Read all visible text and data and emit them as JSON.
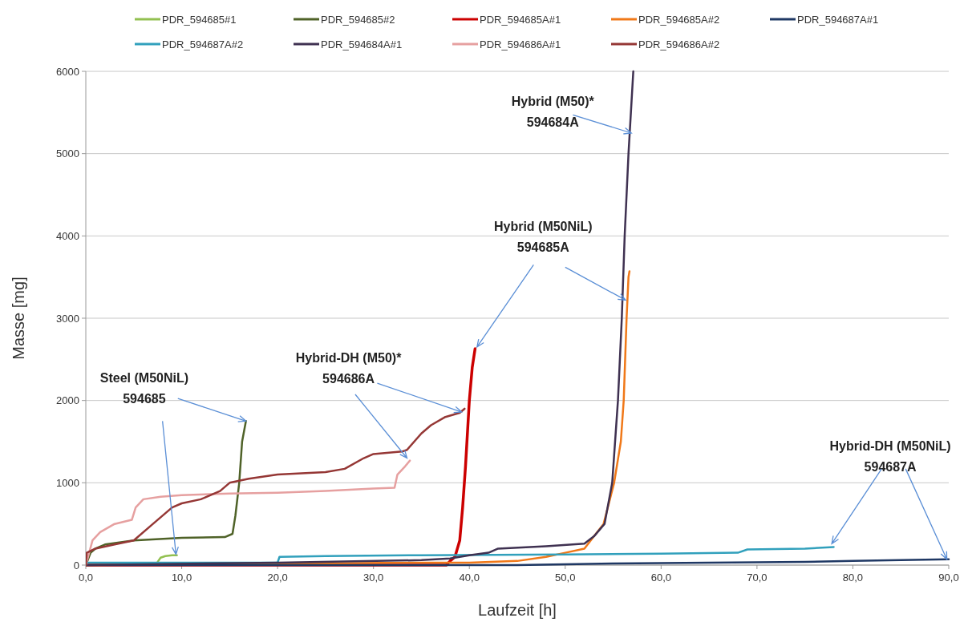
{
  "chart_data": {
    "type": "line",
    "xlabel": "Laufzeit  [h]",
    "ylabel": "Masse [mg]",
    "xlim": [
      0,
      90
    ],
    "ylim": [
      0,
      6000
    ],
    "xticks": [
      {
        "value": 0,
        "label": "0,0"
      },
      {
        "value": 10,
        "label": "10,0"
      },
      {
        "value": 20,
        "label": "20,0"
      },
      {
        "value": 30,
        "label": "30,0"
      },
      {
        "value": 40,
        "label": "40,0"
      },
      {
        "value": 50,
        "label": "50,0"
      },
      {
        "value": 60,
        "label": "60,0"
      },
      {
        "value": 70,
        "label": "70,0"
      },
      {
        "value": 80,
        "label": "80,0"
      },
      {
        "value": 90,
        "label": "90,0"
      }
    ],
    "yticks": [
      0,
      1000,
      2000,
      3000,
      4000,
      5000,
      6000
    ],
    "grid": "y",
    "legend": "top",
    "marker": "none",
    "line_style": "solid",
    "series": [
      {
        "name": "PDR_594685#1",
        "color": "#92c050",
        "x": [
          7.5,
          7.8,
          8.3,
          9,
          9.5
        ],
        "values": [
          40,
          90,
          110,
          120,
          120
        ]
      },
      {
        "name": "PDR_594685#2",
        "color": "#4f6228",
        "x": [
          0,
          0.5,
          1,
          2,
          5,
          10,
          14.5,
          15.3,
          15.6,
          16,
          16.3,
          16.7
        ],
        "values": [
          0,
          150,
          200,
          250,
          300,
          330,
          340,
          380,
          600,
          1000,
          1500,
          1750
        ]
      },
      {
        "name": "PDR_594685A#1",
        "color": "#cc0000",
        "x": [
          0,
          37.6,
          38,
          38.5,
          39,
          39.3,
          39.6,
          40,
          40.3,
          40.6
        ],
        "values": [
          0,
          0,
          50,
          100,
          300,
          700,
          1200,
          2000,
          2400,
          2630
        ]
      },
      {
        "name": "PDR_594685A#2",
        "color": "#f07818",
        "x": [
          0,
          35,
          40,
          45,
          48,
          50,
          52,
          53,
          54,
          55.1,
          55.8,
          56.1,
          56.4,
          56.6,
          56.7
        ],
        "values": [
          0,
          30,
          30,
          50,
          100,
          150,
          200,
          350,
          500,
          1000,
          1500,
          2000,
          3000,
          3500,
          3570
        ]
      },
      {
        "name": "PDR_594687A#1",
        "color": "#1f3864",
        "x": [
          0,
          45,
          50,
          55,
          65,
          75,
          80,
          85,
          90
        ],
        "values": [
          0,
          0,
          10,
          20,
          30,
          40,
          50,
          60,
          70
        ]
      },
      {
        "name": "PDR_594687A#2",
        "color": "#31a0bc",
        "x": [
          0,
          20,
          20.2,
          25,
          35,
          50,
          60,
          68,
          69,
          75,
          78
        ],
        "values": [
          30,
          30,
          100,
          110,
          120,
          130,
          140,
          150,
          190,
          200,
          220
        ]
      },
      {
        "name": "PDR_594684A#1",
        "color": "#3f3151",
        "x": [
          0,
          20,
          35,
          38,
          40,
          42,
          43,
          48,
          52,
          53,
          54.1,
          54.9,
          55.5,
          55.9,
          56.2,
          56.6,
          57.1
        ],
        "values": [
          0,
          30,
          60,
          80,
          120,
          150,
          200,
          230,
          260,
          350,
          500,
          1000,
          2000,
          3000,
          4000,
          5000,
          6000
        ]
      },
      {
        "name": "PDR_594686A#1",
        "color": "#e6a0a0",
        "x": [
          0,
          0.7,
          1.5,
          3,
          4.8,
          5.2,
          6,
          7.8,
          10,
          15,
          20,
          25,
          30,
          32.2,
          32.5,
          33.3,
          33.8
        ],
        "values": [
          0,
          300,
          400,
          500,
          550,
          700,
          800,
          830,
          850,
          870,
          880,
          900,
          930,
          940,
          1100,
          1200,
          1270
        ]
      },
      {
        "name": "PDR_594686A#2",
        "color": "#953735",
        "x": [
          0,
          0.1,
          1,
          3,
          5,
          7,
          9,
          10,
          12,
          14,
          15,
          17,
          20,
          25,
          27,
          29,
          30,
          33,
          33.5,
          35,
          36,
          37.5,
          39,
          39.5
        ],
        "values": [
          0,
          150,
          200,
          250,
          300,
          500,
          700,
          750,
          800,
          900,
          1000,
          1050,
          1100,
          1130,
          1170,
          1300,
          1350,
          1380,
          1400,
          1600,
          1700,
          1800,
          1850,
          1900
        ]
      }
    ],
    "annotations": [
      {
        "text": "Steel (M50NiL)\n594685",
        "x": 16.7,
        "y": 1750
      },
      {
        "text": "Hybrid-DH (M50)*\n594686A",
        "x": 39.2,
        "y": 1860
      },
      {
        "text": "Hybrid (M50NiL)\n594685A",
        "x": 40.8,
        "y": 2650
      },
      {
        "text": "Hybrid (M50)*\n594684A",
        "x": 56.9,
        "y": 5250
      },
      {
        "text": "Hybrid-DH (M50NiL)\n594687A",
        "x": 77.8,
        "y": 260
      }
    ]
  }
}
